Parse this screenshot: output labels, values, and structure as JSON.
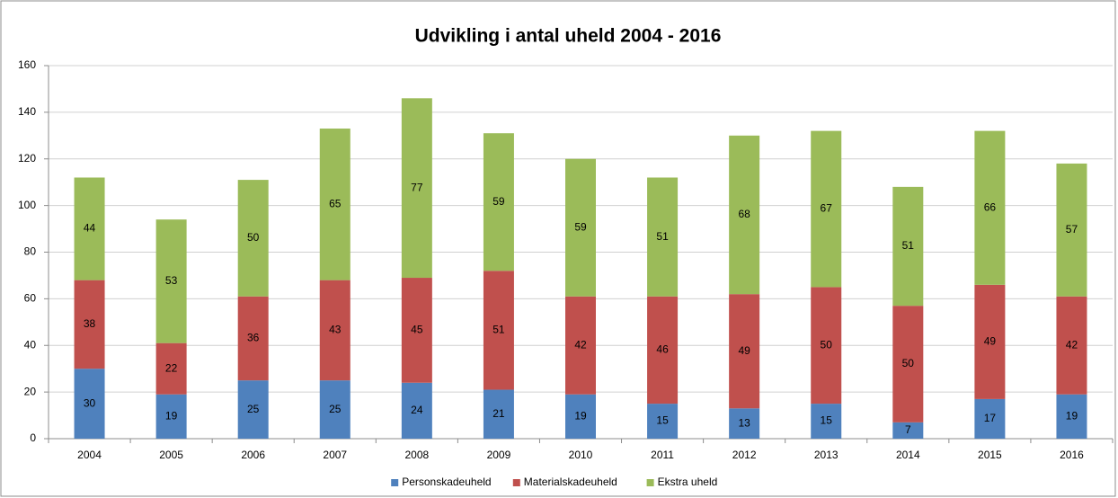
{
  "chart_data": {
    "type": "stacked_bar",
    "title": "Udvikling i antal uheld 2004 - 2016",
    "categories": [
      "2004",
      "2005",
      "2006",
      "2007",
      "2008",
      "2009",
      "2010",
      "2011",
      "2012",
      "2013",
      "2014",
      "2015",
      "2016"
    ],
    "series": [
      {
        "name": "Personskadeuheld",
        "color": "#4f81bd",
        "values": [
          30,
          19,
          25,
          25,
          24,
          21,
          19,
          15,
          13,
          15,
          7,
          17,
          19
        ]
      },
      {
        "name": "Materialskadeuheld",
        "color": "#c0504d",
        "values": [
          38,
          22,
          36,
          43,
          45,
          51,
          42,
          46,
          49,
          50,
          50,
          49,
          42
        ]
      },
      {
        "name": "Ekstra uheld",
        "color": "#9bbb59",
        "values": [
          44,
          53,
          50,
          65,
          77,
          59,
          59,
          51,
          68,
          67,
          51,
          66,
          57
        ]
      }
    ],
    "ylim": [
      0,
      160
    ],
    "yticks": [
      0,
      20,
      40,
      60,
      80,
      100,
      120,
      140,
      160
    ],
    "grid": true,
    "legend": "bottom"
  }
}
